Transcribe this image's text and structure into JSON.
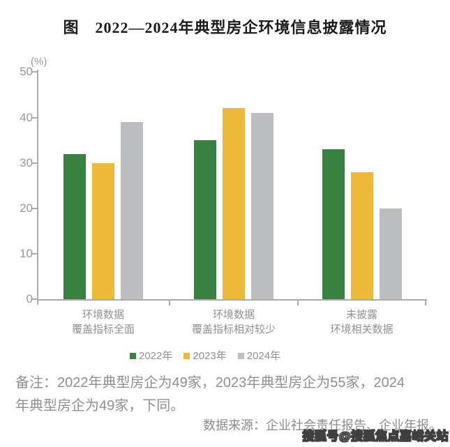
{
  "title": "图　2022—2024年典型房企环境信息披露情况",
  "chart_data": {
    "type": "bar",
    "title": "图 2022—2024年典型房企环境信息披露情况",
    "unit_label": "(%)",
    "categories": [
      [
        "环境数据",
        "覆盖指标全面"
      ],
      [
        "环境数据",
        "覆盖指标相对较少"
      ],
      [
        "未披露",
        "环境相关数据"
      ]
    ],
    "series": [
      {
        "name": "2022年",
        "color": "#38813F",
        "values": [
          32,
          35,
          33
        ]
      },
      {
        "name": "2023年",
        "color": "#ECBA38",
        "values": [
          30,
          42,
          28
        ]
      },
      {
        "name": "2024年",
        "color": "#BDBEC2",
        "values": [
          39,
          41,
          20
        ]
      }
    ],
    "ylim": [
      0,
      50
    ],
    "yticks": [
      0,
      10,
      20,
      30,
      40,
      50
    ],
    "grid": false,
    "legend_position": "bottom",
    "axis_color": "#a9abad",
    "label_color": "#8f9193"
  },
  "note": {
    "lines": [
      "备注：2022年典型房企为49家，2023年典型房企为55家，2024",
      "年典型房企为49家，下同。"
    ]
  },
  "source": "数据来源：企业社会责任报告、企业年报。",
  "watermark": "搜狐号@搜狐焦点嘉峪关站"
}
